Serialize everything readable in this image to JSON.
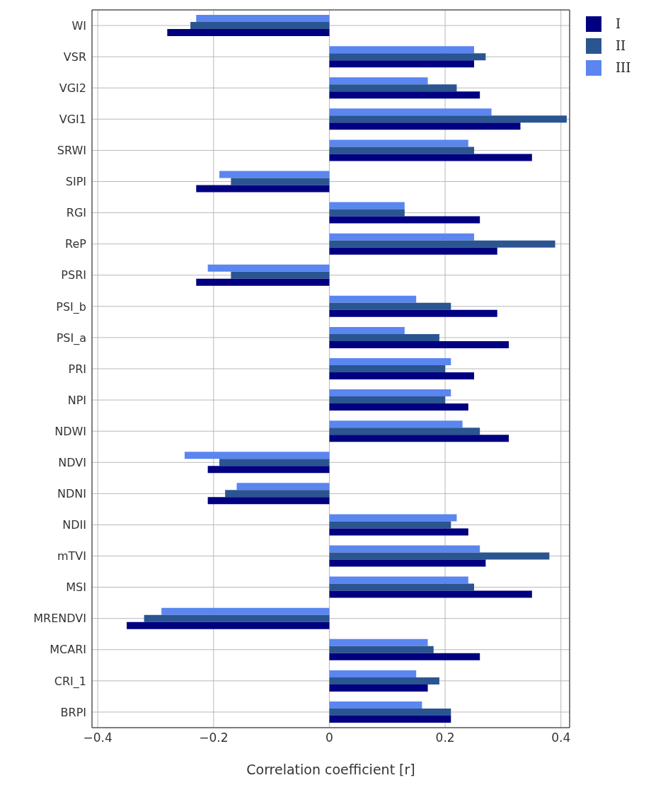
{
  "chart_data": {
    "type": "bar",
    "orientation": "horizontal",
    "xlabel": "Correlation coefficient [r]",
    "categories": [
      "WI",
      "VSR",
      "VGI2",
      "VGI1",
      "SRWI",
      "SIPI",
      "RGI",
      "ReP",
      "PSRI",
      "PSI_b",
      "PSI_a",
      "PRI",
      "NPI",
      "NDWI",
      "NDVI",
      "NDNI",
      "NDII",
      "mTVI",
      "MSI",
      "MRENDVI",
      "MCARI",
      "CRI_1",
      "BRPI"
    ],
    "series": [
      {
        "name": "I",
        "color": "#000080",
        "values": [
          -0.28,
          0.25,
          0.26,
          0.33,
          0.35,
          -0.23,
          0.26,
          0.29,
          -0.23,
          0.29,
          0.31,
          0.25,
          0.24,
          0.31,
          -0.21,
          -0.21,
          0.24,
          0.27,
          0.35,
          -0.35,
          0.26,
          0.17,
          0.21
        ]
      },
      {
        "name": "II",
        "color": "#2a5590",
        "values": [
          -0.24,
          0.27,
          0.22,
          0.41,
          0.25,
          -0.17,
          0.13,
          0.39,
          -0.17,
          0.21,
          0.19,
          0.2,
          0.2,
          0.26,
          -0.19,
          -0.18,
          0.21,
          0.38,
          0.25,
          -0.32,
          0.18,
          0.19,
          0.21
        ]
      },
      {
        "name": "III",
        "color": "#5b86f0",
        "values": [
          -0.23,
          0.25,
          0.17,
          0.28,
          0.24,
          -0.19,
          0.13,
          0.25,
          -0.21,
          0.15,
          0.13,
          0.21,
          0.21,
          0.23,
          -0.25,
          -0.16,
          0.22,
          0.26,
          0.24,
          -0.29,
          0.17,
          0.15,
          0.16
        ]
      }
    ],
    "xlim": [
      -0.41,
      0.415
    ],
    "xticks": [
      {
        "value": -0.4,
        "label": "−0.4"
      },
      {
        "value": -0.2,
        "label": "−0.2"
      },
      0,
      0.2,
      0.4
    ],
    "grid": true,
    "legend": "top right"
  }
}
